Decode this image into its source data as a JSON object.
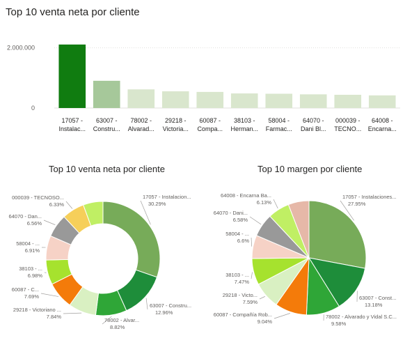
{
  "bar_title": "Top 10 venta neta por cliente",
  "pie1_title": "Top 10 venta neta por cliente",
  "pie2_title": "Top 10 margen por cliente",
  "colors": {
    "bar_highlight": "#107c10",
    "bar_second": "#a6c89a",
    "bar_rest": "#d9e6cd"
  },
  "chart_data": [
    {
      "type": "bar",
      "title": "Top 10 venta neta por cliente",
      "categories": [
        [
          "17057 -",
          "Instalac..."
        ],
        [
          "63007 -",
          "Constru..."
        ],
        [
          "78002 -",
          "Alvarad..."
        ],
        [
          "29218 -",
          "Victoria..."
        ],
        [
          "60087 -",
          "Compa..."
        ],
        [
          "38103 -",
          "Herman..."
        ],
        [
          "58004 -",
          "Farmac..."
        ],
        [
          "64070 -",
          "Dani Bl..."
        ],
        [
          "000039 -",
          "TECNO..."
        ],
        [
          "64008 -",
          "Encarna..."
        ]
      ],
      "values": [
        2110000,
        905000,
        620000,
        555000,
        535000,
        485000,
        475000,
        455000,
        440000,
        420000
      ],
      "yticks": [
        0,
        2000000
      ],
      "ytick_labels": [
        "0",
        "2.000.000"
      ],
      "ylim": [
        0,
        2200000
      ],
      "grid": true
    },
    {
      "type": "pie",
      "donut": true,
      "title": "Top 10 venta neta por cliente",
      "slices": [
        {
          "label": "17057 - Instalacion...",
          "pct": "30.29%",
          "value": 30.29,
          "color": "#77ab59"
        },
        {
          "label": "63007 - Constru...",
          "pct": "12.96%",
          "value": 12.96,
          "color": "#1e8d3a"
        },
        {
          "label": "78002 - Alvar...",
          "pct": "8.82%",
          "value": 8.82,
          "color": "#2fa637"
        },
        {
          "label": "29218 - Victoriano ...",
          "pct": "7.84%",
          "value": 7.84,
          "color": "#d9f0c2"
        },
        {
          "label": "60087 - C...",
          "pct": "7.69%",
          "value": 7.69,
          "color": "#f47b0a"
        },
        {
          "label": "38103 - ...",
          "pct": "6.98%",
          "value": 6.98,
          "color": "#a6e22e"
        },
        {
          "label": "58004 - ...",
          "pct": "6.91%",
          "value": 6.91,
          "color": "#f6d2c6"
        },
        {
          "label": "64070 - Dan...",
          "pct": "6.56%",
          "value": 6.56,
          "color": "#999999"
        },
        {
          "label": "000039 - TECNOSO...",
          "pct": "6.33%",
          "value": 6.33,
          "color": "#f6cf5a"
        },
        {
          "label": "",
          "pct": "",
          "value": 5.62,
          "color": "#c0ef64"
        }
      ]
    },
    {
      "type": "pie",
      "donut": false,
      "title": "Top 10 margen por cliente",
      "slices": [
        {
          "label": "17057 - Instalaciones...",
          "pct": "27.95%",
          "value": 27.95,
          "color": "#77ab59"
        },
        {
          "label": "63007 - Const...",
          "pct": "13.18%",
          "value": 13.18,
          "color": "#1e8d3a"
        },
        {
          "label": "78002 - Alvarado y Vidal S.C...",
          "pct": "9.58%",
          "value": 9.58,
          "color": "#2fa637"
        },
        {
          "label": "60087 - Compañía Rob...",
          "pct": "9.04%",
          "value": 9.04,
          "color": "#f47b0a"
        },
        {
          "label": "29218 - Victo...",
          "pct": "7.59%",
          "value": 7.59,
          "color": "#d9f0c2"
        },
        {
          "label": "38103 - ...",
          "pct": "7.47%",
          "value": 7.47,
          "color": "#a6e22e"
        },
        {
          "label": "58004 - ...",
          "pct": "6.6%",
          "value": 6.6,
          "color": "#f6d2c6"
        },
        {
          "label": "64070 - Dani...",
          "pct": "6.58%",
          "value": 6.58,
          "color": "#999999"
        },
        {
          "label": "64008 - Encarna Ba...",
          "pct": "6.13%",
          "value": 6.13,
          "color": "#c0ef64"
        },
        {
          "label": "",
          "pct": "",
          "value": 5.88,
          "color": "#e6b8a8"
        }
      ]
    }
  ]
}
